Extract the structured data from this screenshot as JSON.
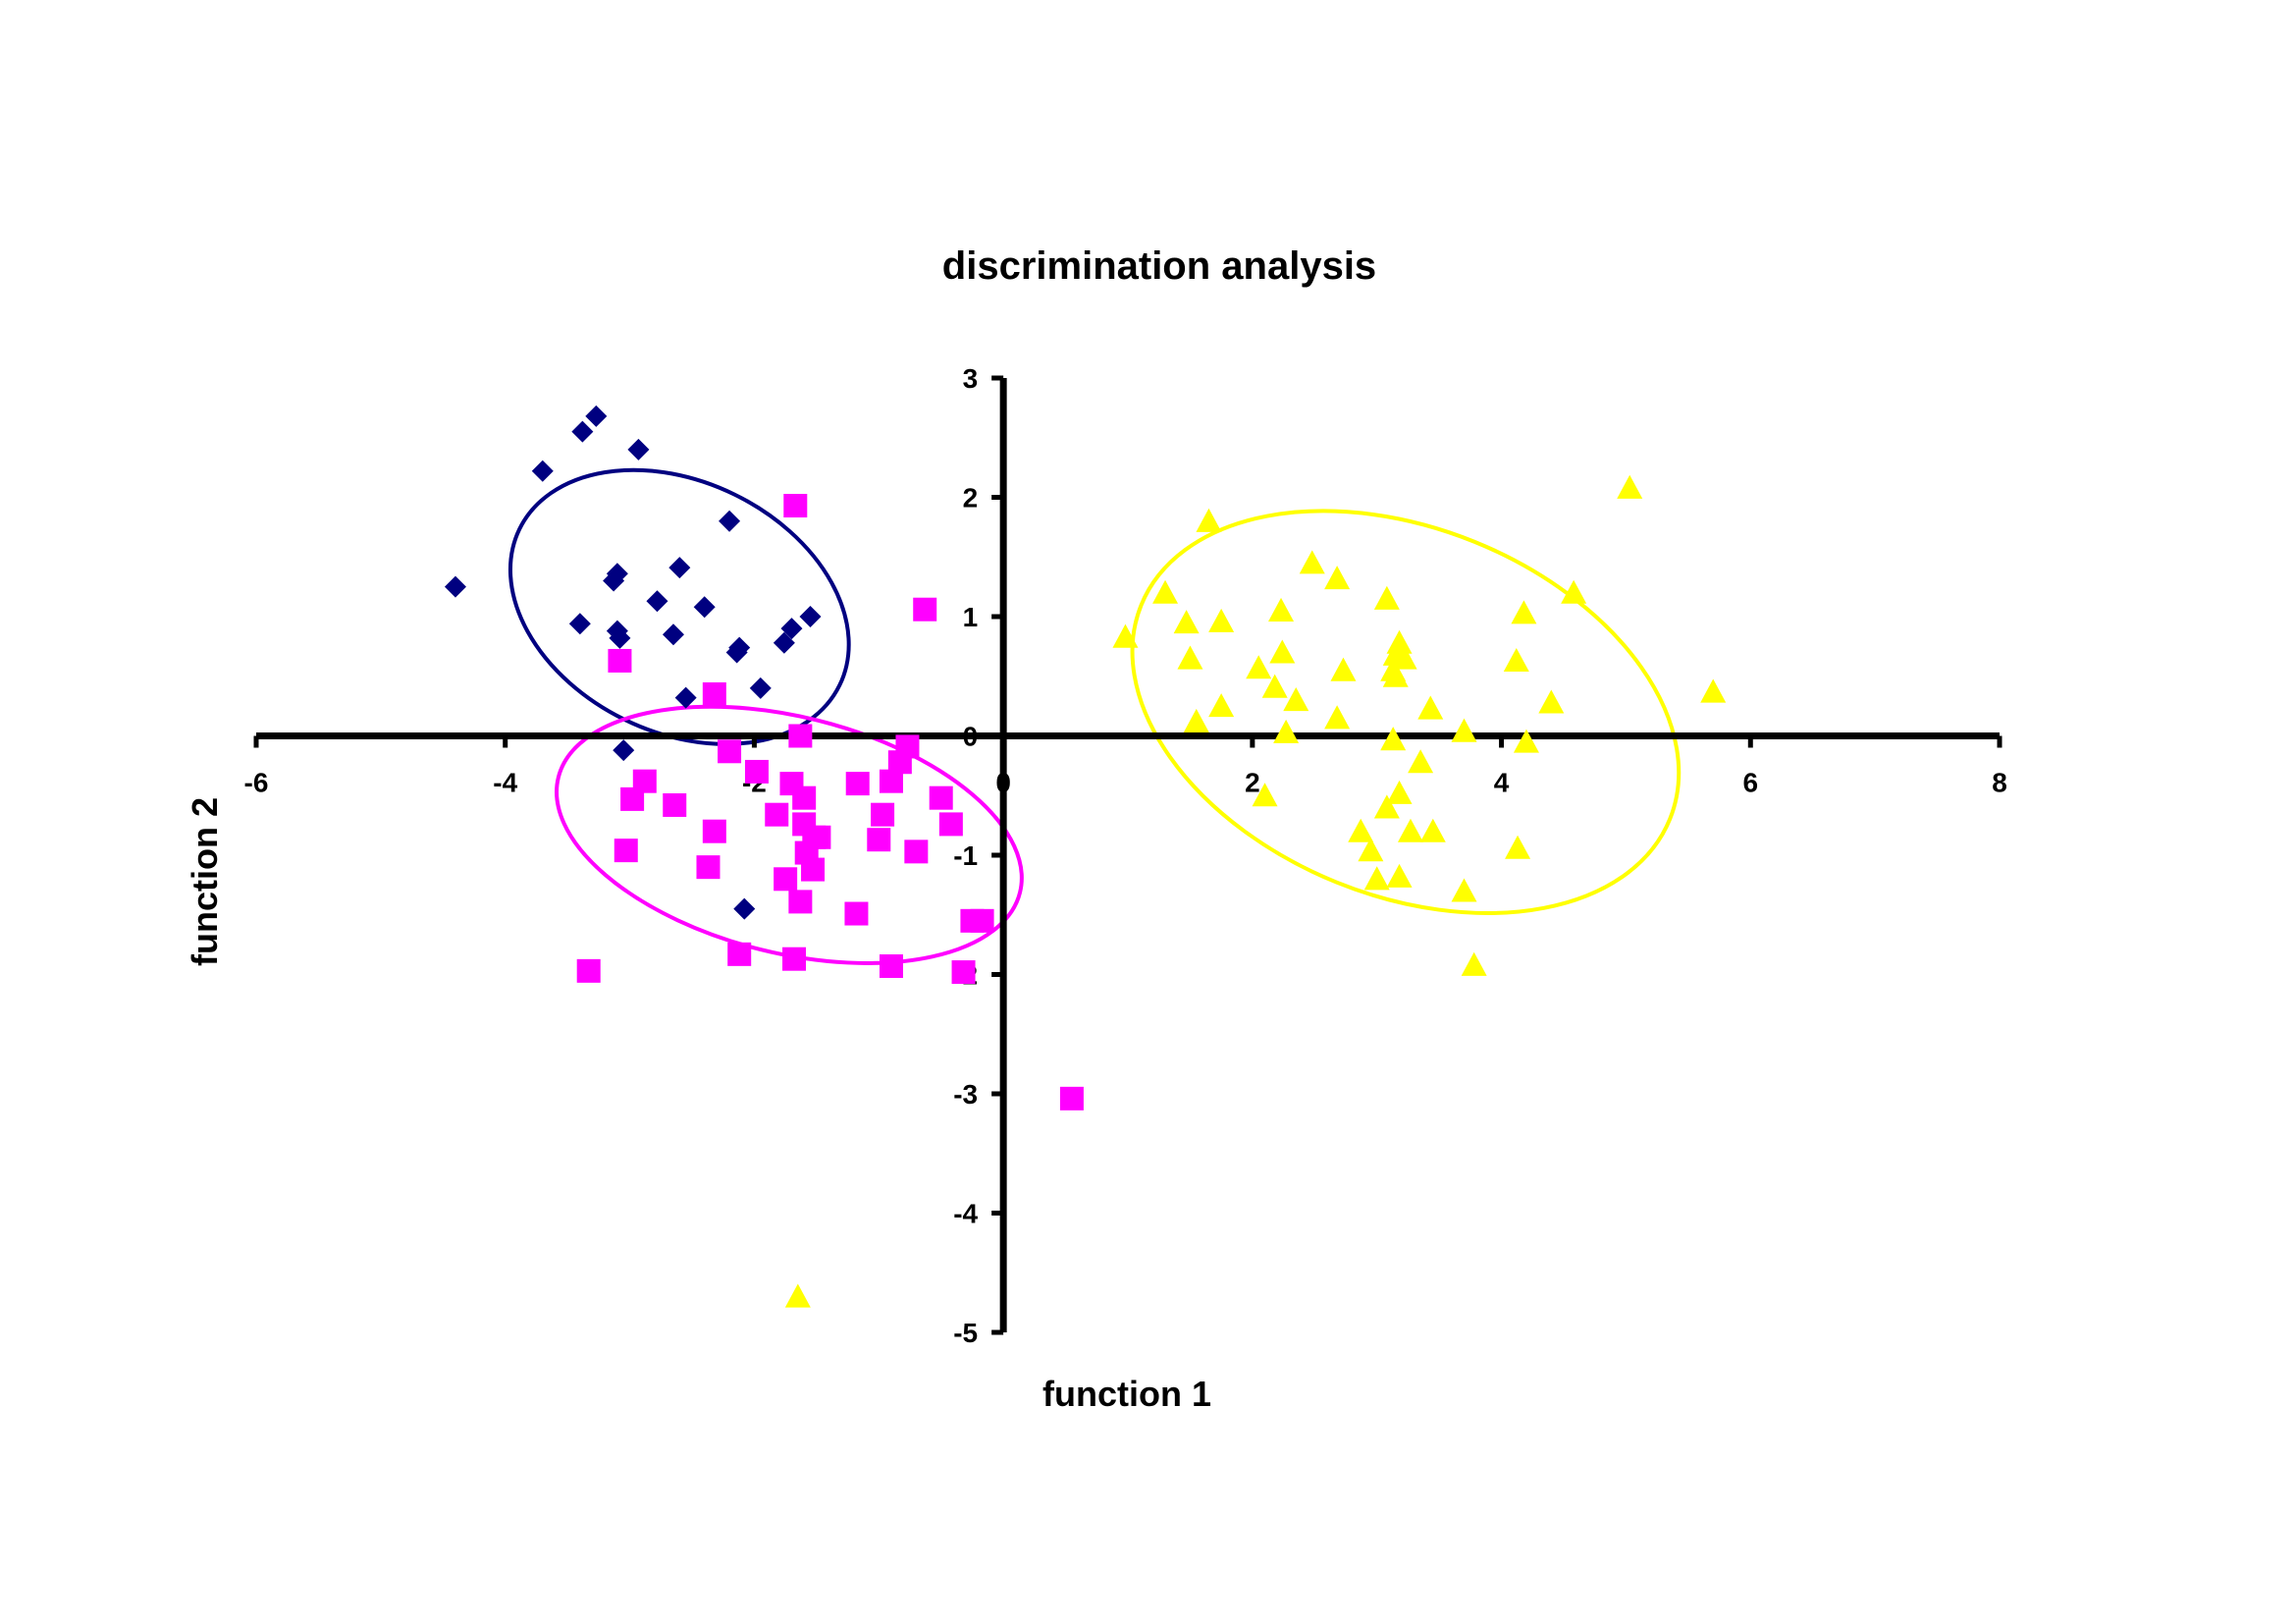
{
  "chart_data": {
    "type": "scatter",
    "title": "discrimination analysis",
    "xlabel": "function 1",
    "ylabel": "function 2",
    "xlim": [
      -6,
      8
    ],
    "ylim": [
      -5,
      3
    ],
    "x_ticks": [
      -6,
      -4,
      -2,
      0,
      2,
      4,
      6,
      8
    ],
    "y_ticks": [
      -5,
      -4,
      -3,
      -2,
      -1,
      0,
      1,
      2,
      3
    ],
    "x_tick_labels": [
      "-6",
      "-4",
      "-2",
      "0",
      "2",
      "4",
      "6",
      "8"
    ],
    "y_tick_labels": [
      "-5",
      "-4",
      "-3",
      "-2",
      "-1",
      "0",
      "1",
      "2",
      "3"
    ],
    "grid": false,
    "series": [
      {
        "marker": "diamond",
        "color": "#000080",
        "points": [
          [
            -3.27,
            2.68
          ],
          [
            -3.38,
            2.55
          ],
          [
            -2.93,
            2.4
          ],
          [
            -3.7,
            2.22
          ],
          [
            -2.2,
            1.8
          ],
          [
            -3.1,
            1.36
          ],
          [
            -2.6,
            1.41
          ],
          [
            -3.13,
            1.3
          ],
          [
            -4.4,
            1.25
          ],
          [
            -2.78,
            1.13
          ],
          [
            -2.4,
            1.08
          ],
          [
            -1.55,
            1.0
          ],
          [
            -3.4,
            0.94
          ],
          [
            -3.1,
            0.88
          ],
          [
            -1.7,
            0.9
          ],
          [
            -2.65,
            0.85
          ],
          [
            -3.08,
            0.82
          ],
          [
            -1.76,
            0.78
          ],
          [
            -2.12,
            0.74
          ],
          [
            -2.14,
            0.7
          ],
          [
            -1.95,
            0.4
          ],
          [
            -2.55,
            0.32
          ],
          [
            -3.05,
            -0.12
          ],
          [
            -2.08,
            -1.45
          ]
        ]
      },
      {
        "marker": "square",
        "color": "#FF00FF",
        "points": [
          [
            -1.67,
            1.93
          ],
          [
            -0.63,
            1.06
          ],
          [
            -3.08,
            0.63
          ],
          [
            -2.32,
            0.35
          ],
          [
            -1.63,
            0.0
          ],
          [
            -0.77,
            -0.09
          ],
          [
            -2.2,
            -0.13
          ],
          [
            -0.83,
            -0.22
          ],
          [
            -1.98,
            -0.3
          ],
          [
            -1.7,
            -0.4
          ],
          [
            -1.17,
            -0.4
          ],
          [
            -0.9,
            -0.38
          ],
          [
            -2.88,
            -0.38
          ],
          [
            -1.6,
            -0.52
          ],
          [
            -0.5,
            -0.52
          ],
          [
            -2.98,
            -0.53
          ],
          [
            -2.64,
            -0.58
          ],
          [
            -1.82,
            -0.66
          ],
          [
            -0.97,
            -0.66
          ],
          [
            -1.6,
            -0.74
          ],
          [
            -0.42,
            -0.74
          ],
          [
            -2.32,
            -0.8
          ],
          [
            -1.48,
            -0.85
          ],
          [
            -1.52,
            -0.85
          ],
          [
            -1.0,
            -0.87
          ],
          [
            -3.03,
            -0.96
          ],
          [
            -0.7,
            -0.97
          ],
          [
            -1.58,
            -0.98
          ],
          [
            -2.37,
            -1.1
          ],
          [
            -1.53,
            -1.12
          ],
          [
            -1.75,
            -1.2
          ],
          [
            -1.63,
            -1.39
          ],
          [
            -1.18,
            -1.49
          ],
          [
            -0.25,
            -1.55
          ],
          [
            -0.17,
            -1.55
          ],
          [
            -2.12,
            -1.83
          ],
          [
            -1.68,
            -1.87
          ],
          [
            -0.9,
            -1.93
          ],
          [
            -0.32,
            -1.98
          ],
          [
            -3.33,
            -1.97
          ],
          [
            0.55,
            -3.04
          ]
        ]
      },
      {
        "marker": "triangle",
        "color": "#FFFF00",
        "points": [
          [
            5.03,
            2.08
          ],
          [
            1.65,
            1.8
          ],
          [
            2.48,
            1.45
          ],
          [
            2.68,
            1.32
          ],
          [
            4.58,
            1.2
          ],
          [
            1.3,
            1.2
          ],
          [
            3.08,
            1.15
          ],
          [
            2.23,
            1.05
          ],
          [
            4.18,
            1.03
          ],
          [
            1.47,
            0.95
          ],
          [
            1.75,
            0.96
          ],
          [
            0.98,
            0.83
          ],
          [
            3.18,
            0.78
          ],
          [
            2.24,
            0.7
          ],
          [
            3.15,
            0.68
          ],
          [
            1.5,
            0.65
          ],
          [
            3.22,
            0.65
          ],
          [
            4.12,
            0.63
          ],
          [
            2.05,
            0.57
          ],
          [
            2.73,
            0.55
          ],
          [
            3.13,
            0.55
          ],
          [
            3.15,
            0.5
          ],
          [
            2.18,
            0.41
          ],
          [
            5.7,
            0.37
          ],
          [
            2.35,
            0.3
          ],
          [
            4.4,
            0.28
          ],
          [
            1.75,
            0.25
          ],
          [
            3.43,
            0.23
          ],
          [
            2.68,
            0.15
          ],
          [
            1.55,
            0.12
          ],
          [
            2.27,
            0.03
          ],
          [
            3.7,
            0.04
          ],
          [
            3.13,
            -0.03
          ],
          [
            4.2,
            -0.05
          ],
          [
            3.35,
            -0.22
          ],
          [
            2.1,
            -0.5
          ],
          [
            3.18,
            -0.48
          ],
          [
            3.08,
            -0.6
          ],
          [
            2.87,
            -0.8
          ],
          [
            3.27,
            -0.8
          ],
          [
            3.45,
            -0.8
          ],
          [
            2.95,
            -0.96
          ],
          [
            4.13,
            -0.94
          ],
          [
            3.0,
            -1.2
          ],
          [
            3.18,
            -1.18
          ],
          [
            3.7,
            -1.3
          ],
          [
            3.78,
            -1.92
          ],
          [
            -1.65,
            -4.7
          ]
        ]
      }
    ],
    "ellipses": [
      {
        "color": "#000080",
        "cx": -2.6,
        "cy": 1.08,
        "rx": 1.43,
        "ry": 1.05,
        "rotation_deg": 26
      },
      {
        "color": "#FF00FF",
        "cx": -1.72,
        "cy": -0.83,
        "rx": 1.91,
        "ry": 0.99,
        "rotation_deg": 14
      },
      {
        "color": "#FFFF00",
        "cx": 3.23,
        "cy": 0.2,
        "rx": 2.29,
        "ry": 1.54,
        "rotation_deg": 22
      }
    ]
  }
}
